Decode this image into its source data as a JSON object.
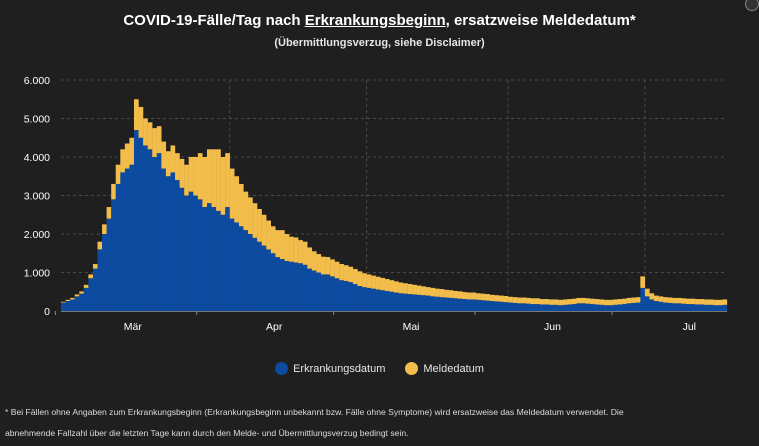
{
  "header": {
    "title_pre": "COVID-19-Fälle/Tag nach ",
    "title_link": "Erkrankungsbeginn",
    "title_post": ", ersatzweise Meldedatum*",
    "subtitle": "(Übermittlungsverzug, siehe Disclaimer)"
  },
  "colors": {
    "background": "#1f1f1f",
    "erkrankung": "#0d4ba0",
    "melde": "#f2bd4b",
    "grid": "#4a4a4a",
    "text": "#ffffff"
  },
  "chart_data": {
    "type": "bar",
    "stacked": true,
    "x_start": "2020-02-24",
    "x_end": "2020-07-18",
    "x_ticks": [
      "Mär",
      "Apr",
      "Mai",
      "Jun",
      "Jul"
    ],
    "y_ticks": [
      "0",
      "1.000",
      "2.000",
      "3.000",
      "4.000",
      "5.000",
      "6.000"
    ],
    "ylim": [
      0,
      6000
    ],
    "grid": true,
    "legend_position": "bottom",
    "series": [
      {
        "name": "Erkrankungsdatum",
        "values": [
          220,
          260,
          300,
          380,
          450,
          600,
          850,
          1100,
          1600,
          2000,
          2400,
          2900,
          3300,
          3600,
          3700,
          3800,
          4700,
          4500,
          4300,
          4200,
          4000,
          4100,
          3700,
          3500,
          3600,
          3400,
          3200,
          3000,
          3100,
          3000,
          2900,
          2700,
          2800,
          2700,
          2600,
          2500,
          2700,
          2400,
          2300,
          2200,
          2100,
          2000,
          1900,
          1800,
          1700,
          1600,
          1500,
          1400,
          1350,
          1300,
          1280,
          1260,
          1240,
          1200,
          1100,
          1050,
          1000,
          950,
          950,
          900,
          850,
          800,
          780,
          750,
          700,
          650,
          620,
          600,
          580,
          560,
          540,
          520,
          500,
          480,
          460,
          450,
          440,
          430,
          420,
          410,
          400,
          380,
          370,
          360,
          350,
          340,
          330,
          320,
          310,
          300,
          300,
          290,
          280,
          270,
          260,
          250,
          240,
          230,
          220,
          210,
          200,
          200,
          190,
          180,
          180,
          170,
          170,
          160,
          160,
          150,
          160,
          170,
          180,
          200,
          200,
          190,
          180,
          170,
          160,
          150,
          150,
          160,
          170,
          180,
          200,
          210,
          220,
          600,
          380,
          300,
          260,
          240,
          220,
          210,
          200,
          200,
          190,
          180,
          180,
          170,
          170,
          160,
          160,
          150,
          150,
          160,
          160,
          170,
          170,
          180,
          180,
          190,
          190,
          200,
          200,
          210,
          210,
          200,
          190,
          180,
          170,
          160,
          150,
          140,
          120,
          100
        ]
      },
      {
        "name": "Meldedatum",
        "values": [
          20,
          30,
          40,
          50,
          60,
          80,
          100,
          120,
          200,
          250,
          300,
          400,
          500,
          600,
          650,
          700,
          800,
          800,
          700,
          700,
          750,
          700,
          700,
          650,
          700,
          700,
          750,
          800,
          900,
          1000,
          1200,
          1300,
          1400,
          1500,
          1600,
          1500,
          1400,
          1300,
          1200,
          1100,
          1000,
          950,
          900,
          850,
          800,
          750,
          700,
          700,
          750,
          700,
          650,
          650,
          600,
          600,
          550,
          500,
          480,
          460,
          450,
          440,
          430,
          420,
          410,
          400,
          390,
          380,
          360,
          350,
          340,
          330,
          320,
          310,
          300,
          290,
          280,
          270,
          260,
          250,
          240,
          230,
          220,
          220,
          210,
          210,
          200,
          200,
          190,
          190,
          180,
          180,
          180,
          170,
          170,
          170,
          160,
          160,
          160,
          160,
          150,
          150,
          150,
          150,
          150,
          150,
          150,
          140,
          140,
          140,
          140,
          140,
          140,
          140,
          140,
          140,
          140,
          140,
          140,
          140,
          140,
          140,
          140,
          140,
          140,
          140,
          140,
          140,
          140,
          300,
          200,
          160,
          140,
          140,
          140,
          140,
          140,
          140,
          140,
          140,
          140,
          140,
          140,
          140,
          140,
          140,
          140,
          140,
          140,
          140,
          140,
          140,
          140,
          140,
          140,
          150,
          150,
          150,
          150,
          150,
          160,
          160,
          180,
          200,
          220,
          260,
          300,
          320,
          340,
          300
        ]
      }
    ]
  },
  "legend": [
    {
      "label": "Erkrankungsdatum",
      "color": "#0d4ba0"
    },
    {
      "label": "Meldedatum",
      "color": "#f2bd4b"
    }
  ],
  "footnote": {
    "line1": "* Bei Fällen ohne Angaben zum Erkrankungsbeginn (Erkrankungsbeginn unbekannt bzw. Fälle ohne Symptome) wird ersatzweise das Meldedatum verwendet. Die",
    "line2": "abnehmende Fallzahl über die letzten Tage kann durch den Melde- und Übermittlungsverzug bedingt sein."
  }
}
